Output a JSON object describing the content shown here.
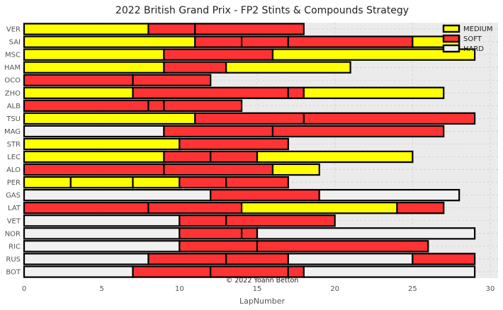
{
  "chart_data": {
    "type": "bar",
    "orientation": "horizontal-stacked",
    "title": "2022 British Grand Prix - FP2 Stints & Compounds Strategy",
    "xlabel": "LapNumber",
    "ylabel": "",
    "xlim": [
      0,
      30.5
    ],
    "xticks": [
      0,
      5,
      10,
      15,
      20,
      25,
      30
    ],
    "grid": true,
    "legend_position": "top-right",
    "annotation": "© 2022 Yoann Betton",
    "compounds": [
      {
        "name": "MEDIUM",
        "color": "#ffff00"
      },
      {
        "name": "SOFT",
        "color": "#ff3333"
      },
      {
        "name": "HARD",
        "color": "#f0f0f0"
      }
    ],
    "drivers": [
      {
        "name": "VER",
        "stints": [
          [
            "MEDIUM",
            8
          ],
          [
            "SOFT",
            3
          ],
          [
            "SOFT",
            7
          ]
        ]
      },
      {
        "name": "SAI",
        "stints": [
          [
            "MEDIUM",
            11
          ],
          [
            "SOFT",
            3
          ],
          [
            "SOFT",
            3
          ],
          [
            "SOFT",
            8
          ],
          [
            "MEDIUM",
            3
          ]
        ]
      },
      {
        "name": "MSC",
        "stints": [
          [
            "MEDIUM",
            9
          ],
          [
            "SOFT",
            7
          ],
          [
            "MEDIUM",
            13
          ]
        ]
      },
      {
        "name": "HAM",
        "stints": [
          [
            "MEDIUM",
            9
          ],
          [
            "SOFT",
            4
          ],
          [
            "MEDIUM",
            8
          ]
        ]
      },
      {
        "name": "OCO",
        "stints": [
          [
            "SOFT",
            7
          ],
          [
            "SOFT",
            5
          ]
        ]
      },
      {
        "name": "ZHO",
        "stints": [
          [
            "MEDIUM",
            7
          ],
          [
            "SOFT",
            10
          ],
          [
            "SOFT",
            1
          ],
          [
            "MEDIUM",
            9
          ]
        ]
      },
      {
        "name": "ALB",
        "stints": [
          [
            "SOFT",
            8
          ],
          [
            "SOFT",
            1
          ],
          [
            "SOFT",
            5
          ]
        ]
      },
      {
        "name": "TSU",
        "stints": [
          [
            "MEDIUM",
            11
          ],
          [
            "SOFT",
            7
          ],
          [
            "SOFT",
            11
          ]
        ]
      },
      {
        "name": "MAG",
        "stints": [
          [
            "HARD",
            9
          ],
          [
            "SOFT",
            7
          ],
          [
            "SOFT",
            11
          ]
        ]
      },
      {
        "name": "STR",
        "stints": [
          [
            "MEDIUM",
            10
          ],
          [
            "SOFT",
            7
          ]
        ]
      },
      {
        "name": "LEC",
        "stints": [
          [
            "MEDIUM",
            9
          ],
          [
            "SOFT",
            3
          ],
          [
            "SOFT",
            3
          ],
          [
            "MEDIUM",
            10
          ]
        ]
      },
      {
        "name": "ALO",
        "stints": [
          [
            "SOFT",
            9
          ],
          [
            "SOFT",
            7
          ],
          [
            "MEDIUM",
            3
          ]
        ]
      },
      {
        "name": "PER",
        "stints": [
          [
            "MEDIUM",
            3
          ],
          [
            "MEDIUM",
            4
          ],
          [
            "MEDIUM",
            3
          ],
          [
            "SOFT",
            3
          ],
          [
            "SOFT",
            4
          ]
        ]
      },
      {
        "name": "GAS",
        "stints": [
          [
            "HARD",
            12
          ],
          [
            "SOFT",
            7
          ],
          [
            "HARD",
            9
          ]
        ]
      },
      {
        "name": "LAT",
        "stints": [
          [
            "SOFT",
            8
          ],
          [
            "SOFT",
            6
          ],
          [
            "MEDIUM",
            10
          ],
          [
            "SOFT",
            3
          ]
        ]
      },
      {
        "name": "VET",
        "stints": [
          [
            "HARD",
            10
          ],
          [
            "SOFT",
            3
          ],
          [
            "SOFT",
            7
          ]
        ]
      },
      {
        "name": "NOR",
        "stints": [
          [
            "HARD",
            10
          ],
          [
            "SOFT",
            4
          ],
          [
            "SOFT",
            1
          ],
          [
            "HARD",
            14
          ]
        ]
      },
      {
        "name": "RIC",
        "stints": [
          [
            "HARD",
            10
          ],
          [
            "SOFT",
            5
          ],
          [
            "SOFT",
            11
          ]
        ]
      },
      {
        "name": "RUS",
        "stints": [
          [
            "HARD",
            8
          ],
          [
            "SOFT",
            5
          ],
          [
            "SOFT",
            4
          ],
          [
            "HARD",
            8
          ],
          [
            "SOFT",
            4
          ]
        ]
      },
      {
        "name": "BOT",
        "stints": [
          [
            "HARD",
            7
          ],
          [
            "SOFT",
            5
          ],
          [
            "SOFT",
            5
          ],
          [
            "SOFT",
            1
          ],
          [
            "HARD",
            11
          ]
        ]
      }
    ]
  }
}
